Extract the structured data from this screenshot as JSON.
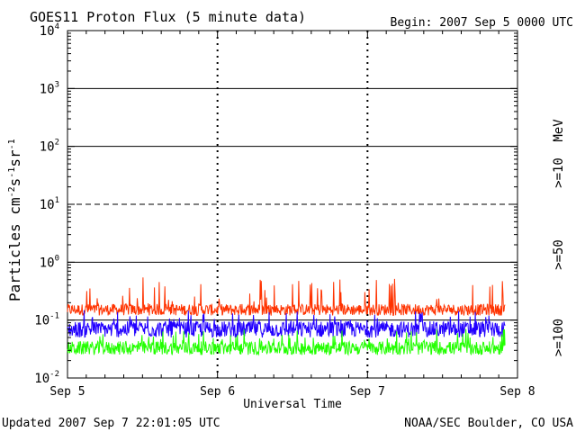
{
  "header": {
    "title": "GOES11 Proton Flux (5 minute data)",
    "begin": "Begin: 2007 Sep 5 0000 UTC"
  },
  "footer": {
    "updated": "Updated 2007 Sep  7 22:01:05 UTC",
    "credit": "NOAA/SEC Boulder, CO USA"
  },
  "chart_data": {
    "type": "line",
    "title": "GOES11 Proton Flux (5 minute data)",
    "xlabel": "Universal Time",
    "ylabel": "Particles cm-2s-1sr-1",
    "y_scale": "log",
    "ylim": [
      0.01,
      10000
    ],
    "y_ticks": [
      {
        "base": "10",
        "exp": "-2"
      },
      {
        "base": "10",
        "exp": "-1"
      },
      {
        "base": "10",
        "exp": "0"
      },
      {
        "base": "10",
        "exp": "1"
      },
      {
        "base": "10",
        "exp": "2"
      },
      {
        "base": "10",
        "exp": "3"
      },
      {
        "base": "10",
        "exp": "4"
      }
    ],
    "x_ticks": [
      "Sep 5",
      "Sep 6",
      "Sep 7",
      "Sep 8"
    ],
    "grid": "horizontal decades (10^1 dashed), daily dashed verticals",
    "legend_unit": "MeV",
    "series": [
      {
        "name": ">=10",
        "color": "#ff3300",
        "typical": 0.16,
        "range": [
          0.12,
          0.55
        ]
      },
      {
        "name": ">=50",
        "color": "#2200ff",
        "typical": 0.075,
        "range": [
          0.05,
          0.15
        ]
      },
      {
        "name": ">=100",
        "color": "#22ff00",
        "typical": 0.035,
        "range": [
          0.025,
          0.07
        ]
      }
    ]
  }
}
